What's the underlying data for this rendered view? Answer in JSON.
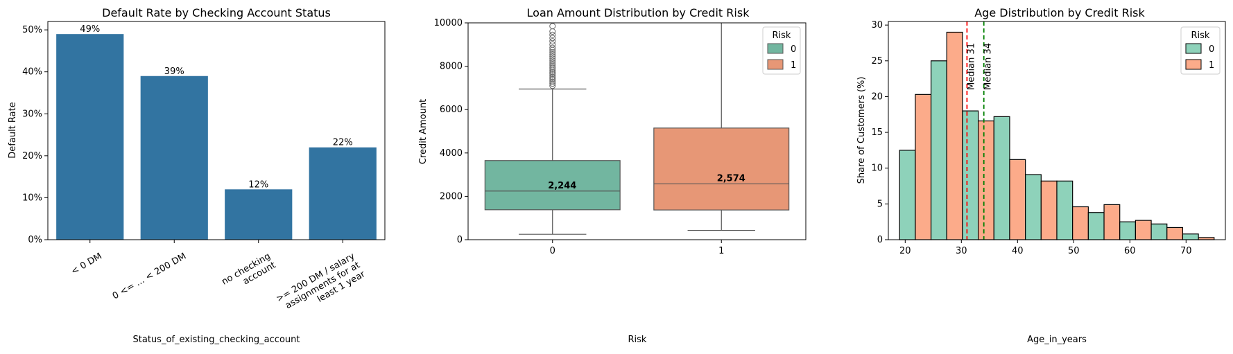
{
  "chart_data": [
    {
      "type": "bar",
      "title": "Default Rate by Checking Account Status",
      "xlabel": "Status_of_existing_checking_account",
      "ylabel": "Default Rate",
      "categories": [
        [
          "< 0 DM"
        ],
        [
          "0 <= ... < 200 DM"
        ],
        [
          "no checking",
          "account"
        ],
        [
          ">= 200 DM / salary",
          "assignments for at",
          "least 1 year"
        ]
      ],
      "values": [
        0.49,
        0.39,
        0.12,
        0.22
      ],
      "data_labels": [
        "49%",
        "39%",
        "12%",
        "22%"
      ],
      "ylim": [
        0,
        0.52
      ],
      "yticks": [
        0,
        0.1,
        0.2,
        0.3,
        0.4,
        0.5
      ],
      "ytick_labels": [
        "0%",
        "10%",
        "20%",
        "30%",
        "40%",
        "50%"
      ],
      "color": "#3274a1"
    },
    {
      "type": "box",
      "title": "Loan Amount Distribution by Credit Risk",
      "xlabel": "Risk",
      "ylabel": "Credit Amount",
      "categories": [
        "0",
        "1"
      ],
      "ylim": [
        0,
        10000
      ],
      "yticks": [
        0,
        2000,
        4000,
        6000,
        8000,
        10000
      ],
      "ytick_labels": [
        "0",
        "2000",
        "4000",
        "6000",
        "8000",
        "10000"
      ],
      "boxes": [
        {
          "name": "0",
          "whisker_low": 250,
          "q1": 1380,
          "median": 2244,
          "q3": 3650,
          "whisker_high": 6950,
          "color": "#72b6a0",
          "outliers": [
            7100,
            7200,
            7280,
            7350,
            7420,
            7500,
            7580,
            7650,
            7720,
            7800,
            7880,
            7950,
            8050,
            8150,
            8250,
            8350,
            8450,
            8550,
            8650,
            8750,
            8850,
            9000,
            9150,
            9300,
            9450,
            9600,
            9850
          ]
        },
        {
          "name": "1",
          "whisker_low": 430,
          "q1": 1370,
          "median": 2574,
          "q3": 5150,
          "whisker_high": 10000,
          "color": "#e79776",
          "outliers": []
        }
      ],
      "median_labels": [
        "2,244",
        "2,574"
      ],
      "legend": {
        "title": "Risk",
        "position": "top-right",
        "entries": [
          "0",
          "1"
        ]
      }
    },
    {
      "type": "histogram",
      "title": "Age Distribution by Credit Risk",
      "xlabel": "Age_in_years",
      "ylabel": "Share of Customers (%)",
      "xlim": [
        17,
        77
      ],
      "ylim": [
        0,
        30.5
      ],
      "xticks": [
        20,
        30,
        40,
        50,
        60,
        70
      ],
      "xtick_labels": [
        "20",
        "30",
        "40",
        "50",
        "60",
        "70"
      ],
      "yticks": [
        0,
        5,
        10,
        15,
        20,
        25,
        30
      ],
      "ytick_labels": [
        "0",
        "5",
        "10",
        "15",
        "20",
        "25",
        "30"
      ],
      "bin_edges": [
        19,
        24.6,
        30.2,
        35.8,
        41.4,
        47,
        52.6,
        58.2,
        63.8,
        69.4,
        75
      ],
      "series": [
        {
          "name": "0",
          "color": "#8ed2ba",
          "values": [
            12.5,
            25.0,
            18.0,
            17.2,
            9.1,
            8.2,
            3.8,
            2.5,
            2.2,
            0.8
          ]
        },
        {
          "name": "1",
          "color": "#fcab8a",
          "values": [
            20.3,
            29.0,
            16.6,
            11.2,
            8.2,
            4.6,
            4.9,
            2.7,
            1.7,
            0.3
          ]
        }
      ],
      "vlines": [
        {
          "x": 31,
          "color": "#ff0000",
          "label": "Median 31"
        },
        {
          "x": 34,
          "color": "#008000",
          "label": "Median 34"
        }
      ],
      "legend": {
        "title": "Risk",
        "position": "top-right",
        "entries": [
          "0",
          "1"
        ]
      }
    }
  ]
}
